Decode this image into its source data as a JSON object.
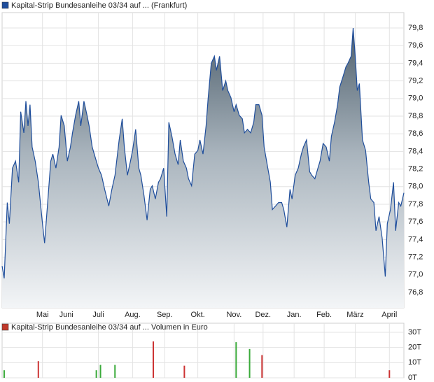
{
  "chart_data": [
    {
      "type": "area",
      "title": "Kapital-Strip Bundesanleihe 03/34 auf ... (Frankfurt)",
      "color": "#1f4e9c",
      "grid": true,
      "x": [
        0,
        2,
        5,
        7,
        10,
        13,
        16,
        18,
        21,
        23,
        25,
        27,
        29,
        32,
        35,
        39,
        41,
        44,
        47,
        49,
        52,
        55,
        57,
        60,
        63,
        66,
        68,
        71,
        74,
        76,
        79,
        82,
        84,
        87,
        90,
        93,
        96,
        99,
        103,
        106,
        109,
        113,
        116,
        118,
        121,
        124,
        126,
        129,
        132,
        134,
        137,
        140,
        143,
        145,
        148,
        151,
        153,
        156,
        159,
        161,
        164,
        167,
        170,
        172,
        175,
        178,
        180,
        183,
        186,
        189,
        191,
        194,
        197,
        199,
        202,
        205,
        207,
        210,
        213,
        216,
        218,
        221,
        224,
        226,
        229,
        232,
        234,
        237,
        240,
        243,
        245,
        248,
        251,
        253,
        256,
        259,
        261,
        264,
        267,
        270,
        272,
        275,
        278,
        280,
        283,
        286,
        289,
        291,
        294,
        297,
        299,
        302,
        305,
        307,
        310,
        313,
        316,
        318,
        321,
        324,
        326,
        329,
        332,
        334,
        337,
        339,
        341,
        343,
        345,
        348,
        351,
        354,
        356,
        359,
        361,
        364,
        367,
        370,
        372,
        375,
        378,
        380,
        383,
        385,
        388
      ],
      "values": [
        77.1,
        76.96,
        77.82,
        77.58,
        78.21,
        78.29,
        78.05,
        78.85,
        78.61,
        78.97,
        78.69,
        78.93,
        78.45,
        78.29,
        78.05,
        77.58,
        77.36,
        77.82,
        78.29,
        78.37,
        78.21,
        78.45,
        78.81,
        78.69,
        78.29,
        78.45,
        78.61,
        78.81,
        78.97,
        78.69,
        78.97,
        78.81,
        78.69,
        78.45,
        78.33,
        78.21,
        78.13,
        77.97,
        77.78,
        77.97,
        78.13,
        78.53,
        78.77,
        78.45,
        78.13,
        78.29,
        78.41,
        78.65,
        78.21,
        78.13,
        77.9,
        77.62,
        77.97,
        78.01,
        77.86,
        78.05,
        78.09,
        78.21,
        77.66,
        78.73,
        78.57,
        78.37,
        78.25,
        78.53,
        78.29,
        78.21,
        78.09,
        78.01,
        78.37,
        78.41,
        78.53,
        78.37,
        78.69,
        79.01,
        79.4,
        79.48,
        79.32,
        79.48,
        79.09,
        79.2,
        79.09,
        79.01,
        78.85,
        78.93,
        78.81,
        78.77,
        78.61,
        78.65,
        78.61,
        78.73,
        78.93,
        78.93,
        78.81,
        78.45,
        78.25,
        78.05,
        77.74,
        77.78,
        77.82,
        77.82,
        77.74,
        77.54,
        77.97,
        77.86,
        78.13,
        78.21,
        78.37,
        78.45,
        78.53,
        78.17,
        78.13,
        78.09,
        78.21,
        78.29,
        78.49,
        78.45,
        78.29,
        78.57,
        78.73,
        78.93,
        79.13,
        79.24,
        79.36,
        79.4,
        79.48,
        79.8,
        79.48,
        79.09,
        79.17,
        78.53,
        78.41,
        78.05,
        77.86,
        77.82,
        77.5,
        77.66,
        77.42,
        76.98,
        77.58,
        77.74,
        78.05,
        77.5,
        77.82,
        77.78,
        77.93
      ],
      "xlim": [
        0,
        388
      ],
      "xticks": [
        {
          "value": 39,
          "label": "Mai"
        },
        {
          "value": 62,
          "label": "Juni"
        },
        {
          "value": 93,
          "label": "Juli"
        },
        {
          "value": 126,
          "label": "Aug."
        },
        {
          "value": 157,
          "label": "Sep."
        },
        {
          "value": 189,
          "label": "Okt."
        },
        {
          "value": 224,
          "label": "Nov."
        },
        {
          "value": 252,
          "label": "Dez."
        },
        {
          "value": 282,
          "label": "Jan."
        },
        {
          "value": 311,
          "label": "Feb."
        },
        {
          "value": 341,
          "label": "März"
        },
        {
          "value": 374,
          "label": "April"
        }
      ],
      "ylim": [
        76.625,
        79.975
      ],
      "yticks": [
        {
          "value": 76.8,
          "label": "76,8"
        },
        {
          "value": 77.0,
          "label": "77,0"
        },
        {
          "value": 77.2,
          "label": "77,2"
        },
        {
          "value": 77.4,
          "label": "77,4"
        },
        {
          "value": 77.6,
          "label": "77,6"
        },
        {
          "value": 77.8,
          "label": "77,8"
        },
        {
          "value": 78.0,
          "label": "78,0"
        },
        {
          "value": 78.2,
          "label": "78,2"
        },
        {
          "value": 78.4,
          "label": "78,4"
        },
        {
          "value": 78.6,
          "label": "78,6"
        },
        {
          "value": 78.8,
          "label": "78,8"
        },
        {
          "value": 79.0,
          "label": "79,0"
        },
        {
          "value": 79.2,
          "label": "79,2"
        },
        {
          "value": 79.4,
          "label": "79,4"
        },
        {
          "value": 79.6,
          "label": "79,6"
        },
        {
          "value": 79.8,
          "label": "79,8"
        }
      ]
    },
    {
      "type": "bar",
      "title": "Kapital-Strip Bundesanleihe 03/34 auf ... Volumen in Euro",
      "color": "#c0392b",
      "grid": true,
      "x": [
        2,
        35,
        91,
        95,
        109,
        146,
        176,
        226,
        239,
        251,
        374
      ],
      "values": [
        5000,
        11000,
        5000,
        8500,
        8500,
        24000,
        8000,
        23500,
        19000,
        15000,
        5000
      ],
      "colors": [
        "#3aaa3a",
        "#cc3333",
        "#3aaa3a",
        "#3aaa3a",
        "#3aaa3a",
        "#cc3333",
        "#cc3333",
        "#3aaa3a",
        "#3aaa3a",
        "#cc3333",
        "#cc3333"
      ],
      "xlim": [
        0,
        388
      ],
      "ylim": [
        0,
        36000
      ],
      "yticks": [
        {
          "value": 0,
          "label": "0T"
        },
        {
          "value": 10000,
          "label": "10T"
        },
        {
          "value": 20000,
          "label": "20T"
        },
        {
          "value": 30000,
          "label": "30T"
        }
      ]
    }
  ]
}
